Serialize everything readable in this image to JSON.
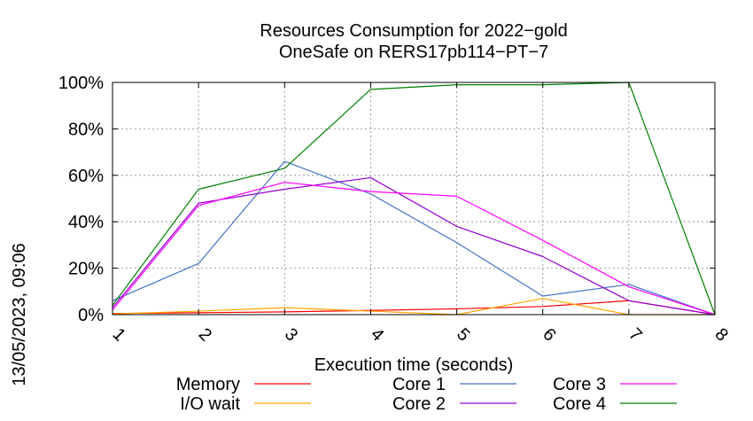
{
  "chart_data": {
    "type": "line",
    "title": "Resources Consumption for 2022−gold",
    "subtitle": "OneSafe on RERS17pb114−PT−7",
    "xlabel": "Execution time (seconds)",
    "ylabel": "",
    "side_label": "13/05/2023, 09:06",
    "xlim": [
      1,
      8
    ],
    "ylim": [
      0,
      100
    ],
    "x_ticks": [
      "1",
      "2",
      "3",
      "4",
      "5",
      "6",
      "7",
      "8"
    ],
    "y_ticks": [
      "0%",
      "20%",
      "40%",
      "60%",
      "80%",
      "100%"
    ],
    "grid": true,
    "legend_position": "bottom",
    "x": [
      1,
      2,
      3,
      4,
      5,
      6,
      7,
      8
    ],
    "series": [
      {
        "name": "Memory",
        "color": "#ff0000",
        "values": [
          0.5,
          0.8,
          1.2,
          1.8,
          2.5,
          3.5,
          6.0,
          0
        ]
      },
      {
        "name": "I/O wait",
        "color": "#ffa500",
        "values": [
          0.3,
          1.5,
          3.0,
          1.5,
          0.0,
          7.0,
          0.0,
          0
        ]
      },
      {
        "name": "Core 1",
        "color": "#4472c4",
        "values": [
          6,
          22,
          66,
          52,
          31,
          8,
          13,
          0
        ]
      },
      {
        "name": "Core 2",
        "color": "#9400d3",
        "values": [
          3,
          48,
          54,
          59,
          38,
          25,
          6,
          0
        ]
      },
      {
        "name": "Core 3",
        "color": "#ff00ff",
        "values": [
          2,
          47,
          57,
          53,
          51,
          32,
          12,
          0
        ]
      },
      {
        "name": "Core 4",
        "color": "#008000",
        "values": [
          4,
          54,
          63,
          97,
          99,
          99,
          100,
          0
        ]
      }
    ]
  }
}
